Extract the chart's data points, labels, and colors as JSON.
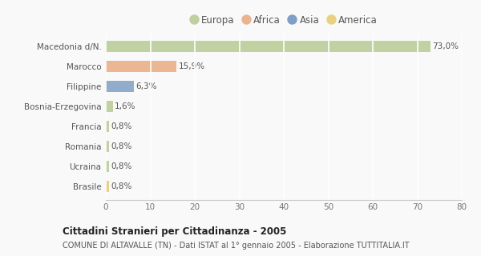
{
  "categories": [
    "Macedonia d/N.",
    "Marocco",
    "Filippine",
    "Bosnia-Erzegovina",
    "Francia",
    "Romania",
    "Ucraina",
    "Brasile"
  ],
  "values": [
    73.0,
    15.9,
    6.3,
    1.6,
    0.8,
    0.8,
    0.8,
    0.8
  ],
  "labels": [
    "73,0%",
    "15,9%",
    "6,3%",
    "1,6%",
    "0,8%",
    "0,8%",
    "0,8%",
    "0,8%"
  ],
  "colors": [
    "#b5c98e",
    "#e8a87c",
    "#7b9dc2",
    "#b5c98e",
    "#b5c98e",
    "#b5c98e",
    "#b5c98e",
    "#e8c96e"
  ],
  "legend": [
    {
      "label": "Europa",
      "color": "#b5c98e"
    },
    {
      "label": "Africa",
      "color": "#e8a87c"
    },
    {
      "label": "Asia",
      "color": "#6b8fbf"
    },
    {
      "label": "America",
      "color": "#e8c96e"
    }
  ],
  "xlim": [
    0,
    80
  ],
  "xticks": [
    0,
    10,
    20,
    30,
    40,
    50,
    60,
    70,
    80
  ],
  "title": "Cittadini Stranieri per Cittadinanza - 2005",
  "subtitle": "COMUNE DI ALTAVALLE (TN) - Dati ISTAT al 1° gennaio 2005 - Elaborazione TUTTITALIA.IT",
  "background_color": "#f9f9f9",
  "grid_color": "#ffffff",
  "bar_height": 0.55
}
